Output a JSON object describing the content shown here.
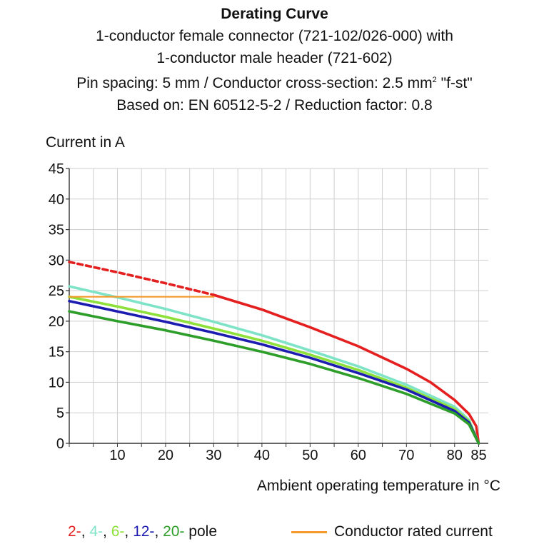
{
  "header": {
    "title": "Derating Curve",
    "line1": "1-conductor female connector (721-102/026-000) with",
    "line2": "1-conductor male header (721-602)",
    "line3_pre": "Pin spacing: 5 mm / Conductor cross-section: 2.5 mm",
    "line3_sup": "2",
    "line3_post": " \"f-st\"",
    "line4": "Based on: EN 60512-5-2 / Reduction factor: 0.8"
  },
  "legend": {
    "pole_items": [
      {
        "text": "2-",
        "color": "#e3201f"
      },
      {
        "text": ", ",
        "color": "#111111"
      },
      {
        "text": "4-",
        "color": "#7fe3c8"
      },
      {
        "text": ", ",
        "color": "#111111"
      },
      {
        "text": "6-",
        "color": "#8ee03a"
      },
      {
        "text": ", ",
        "color": "#111111"
      },
      {
        "text": "12-",
        "color": "#1c1cb0"
      },
      {
        "text": ", ",
        "color": "#111111"
      },
      {
        "text": "20-",
        "color": "#2e9e2a"
      },
      {
        "text": " pole",
        "color": "#111111"
      }
    ],
    "rated_label": "Conductor rated current",
    "rated_color": "#f39a2b"
  },
  "chart_data": {
    "type": "line",
    "title": "Derating Curve",
    "ylabel": "Current in A",
    "xlabel": "Ambient operating temperature in °C",
    "xlim": [
      0,
      87
    ],
    "ylim": [
      0,
      45
    ],
    "xticks": [
      10,
      20,
      30,
      40,
      50,
      60,
      70,
      80,
      85
    ],
    "yticks": [
      0,
      5,
      10,
      15,
      20,
      25,
      30,
      35,
      40,
      45
    ],
    "grid": true,
    "series": [
      {
        "name": "2-pole dashed",
        "color": "#e3201f",
        "dashed": true,
        "x": [
          0,
          10,
          20,
          30
        ],
        "y": [
          29.7,
          28.0,
          26.2,
          24.3
        ]
      },
      {
        "name": "2-pole",
        "color": "#e3201f",
        "x": [
          30,
          40,
          50,
          60,
          70,
          75,
          80,
          83,
          84.5,
          85
        ],
        "y": [
          24.3,
          21.9,
          19.0,
          15.9,
          12.2,
          10.0,
          7.1,
          4.8,
          2.8,
          0
        ]
      },
      {
        "name": "4-pole",
        "color": "#7fe3c8",
        "x": [
          0,
          10,
          20,
          30,
          40,
          50,
          60,
          70,
          80,
          83,
          85
        ],
        "y": [
          25.7,
          23.9,
          22.0,
          19.9,
          17.7,
          15.2,
          12.6,
          9.6,
          6.0,
          3.8,
          0
        ]
      },
      {
        "name": "6-pole",
        "color": "#8ee03a",
        "x": [
          0,
          10,
          20,
          30,
          40,
          50,
          60,
          70,
          80,
          83,
          85
        ],
        "y": [
          24.0,
          22.4,
          20.7,
          18.8,
          16.8,
          14.5,
          12.0,
          9.1,
          5.6,
          3.6,
          0
        ]
      },
      {
        "name": "12-pole",
        "color": "#1c1cb0",
        "x": [
          0,
          10,
          20,
          30,
          40,
          50,
          60,
          70,
          80,
          83,
          85
        ],
        "y": [
          23.3,
          21.6,
          19.9,
          18.1,
          16.2,
          14.0,
          11.5,
          8.8,
          5.3,
          3.4,
          0
        ]
      },
      {
        "name": "20-pole",
        "color": "#2e9e2a",
        "x": [
          0,
          10,
          20,
          30,
          40,
          50,
          60,
          70,
          80,
          83,
          85
        ],
        "y": [
          21.6,
          20.0,
          18.5,
          16.8,
          15.0,
          13.0,
          10.7,
          8.1,
          4.9,
          3.1,
          0
        ]
      },
      {
        "name": "Conductor rated current",
        "color": "#f39a2b",
        "x": [
          0,
          30
        ],
        "y": [
          24,
          24
        ]
      }
    ]
  }
}
